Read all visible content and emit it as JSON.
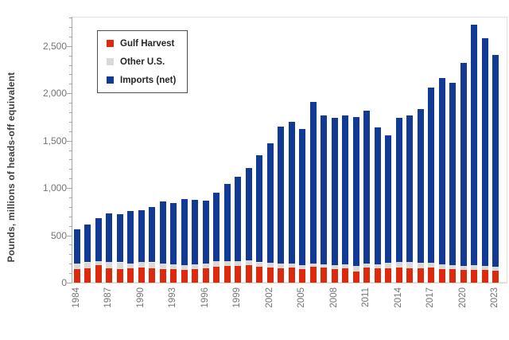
{
  "chart_data": {
    "type": "bar",
    "stacked": true,
    "title": "",
    "xlabel": "",
    "ylabel": "Pounds, millions of heads-off equivalent",
    "ylim": [
      0,
      2800
    ],
    "grid": false,
    "legend_position": "top-left-inside",
    "yticks_major": [
      0,
      500,
      1000,
      1500,
      2000,
      2500
    ],
    "ytick_labels": [
      "0",
      "500",
      "1,000",
      "1,500",
      "2,000",
      "2,500"
    ],
    "ytick_minor_step": 100,
    "xtick_label_every": 3,
    "categories": [
      1984,
      1985,
      1986,
      1987,
      1988,
      1989,
      1990,
      1991,
      1992,
      1993,
      1994,
      1995,
      1996,
      1997,
      1998,
      1999,
      2000,
      2001,
      2002,
      2003,
      2004,
      2005,
      2006,
      2007,
      2008,
      2009,
      2010,
      2011,
      2012,
      2013,
      2014,
      2015,
      2016,
      2017,
      2018,
      2019,
      2020,
      2021,
      2022,
      2023
    ],
    "series": [
      {
        "name": "Gulf Harvest",
        "color": "#dd2a0c",
        "values": [
          145,
          155,
          185,
          155,
          145,
          150,
          160,
          150,
          145,
          140,
          135,
          140,
          150,
          165,
          175,
          175,
          185,
          165,
          160,
          155,
          160,
          145,
          165,
          158,
          145,
          153,
          116,
          164,
          153,
          153,
          158,
          153,
          153,
          158,
          145,
          140,
          135,
          135,
          130,
          125
        ]
      },
      {
        "name": "Other U.S.",
        "color": "#d9d9d9",
        "values": [
          60,
          60,
          45,
          65,
          70,
          55,
          60,
          65,
          55,
          50,
          50,
          55,
          50,
          65,
          55,
          50,
          50,
          50,
          50,
          45,
          45,
          40,
          35,
          35,
          42,
          40,
          57,
          40,
          40,
          60,
          60,
          65,
          55,
          50,
          45,
          45,
          45,
          50,
          50,
          45
        ]
      },
      {
        "name": "Imports (net)",
        "color": "#123a94",
        "values": [
          355,
          400,
          450,
          515,
          510,
          550,
          545,
          585,
          660,
          650,
          695,
          680,
          665,
          720,
          810,
          895,
          980,
          1130,
          1260,
          1445,
          1490,
          1435,
          1705,
          1572,
          1558,
          1572,
          1577,
          1616,
          1447,
          1347,
          1527,
          1547,
          1627,
          1852,
          1970,
          1930,
          2140,
          2540,
          2405,
          2235
        ]
      }
    ]
  },
  "colors": {
    "axis_line": "#a6a6a6",
    "plot_border": "#e2e2e2",
    "tick_label": "#757575",
    "axis_title": "#3f3f3f",
    "legend_border": "#4d4d4d"
  }
}
